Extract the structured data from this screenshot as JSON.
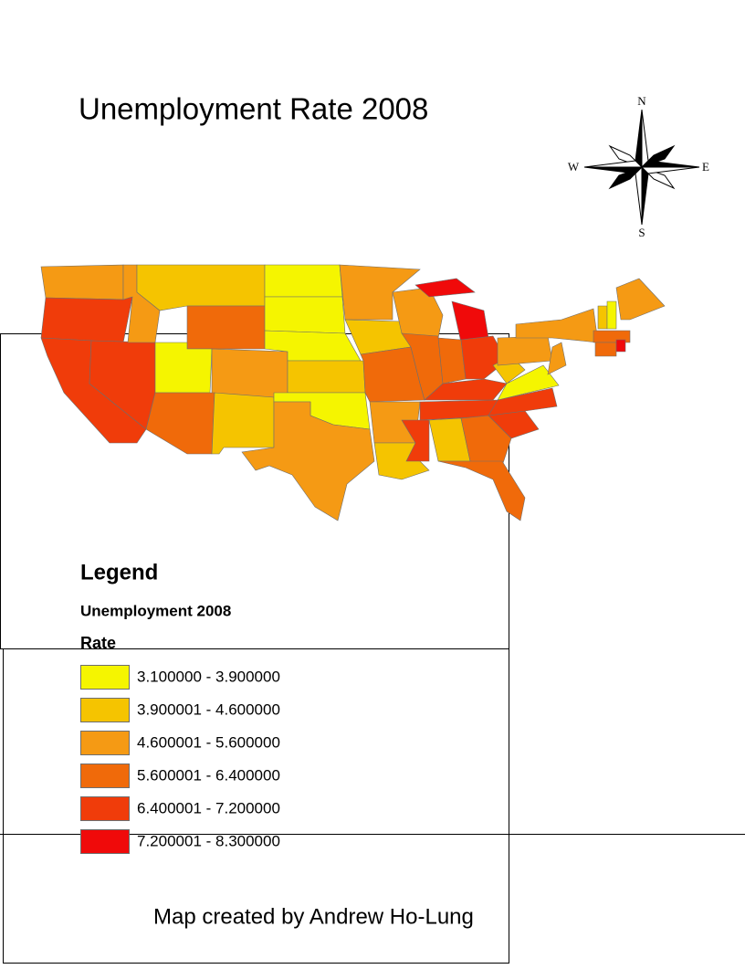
{
  "title": "Unemployment Rate 2008",
  "compass": {
    "north": "N",
    "south": "S",
    "east": "E",
    "west": "W"
  },
  "legend": {
    "title": "Legend",
    "layer": "Unemployment 2008",
    "field": "Rate",
    "classes": [
      {
        "label": "3.100000 - 3.900000",
        "color": "#f5f500"
      },
      {
        "label": "3.900001 - 4.600000",
        "color": "#f5c400"
      },
      {
        "label": "4.600001 - 5.600000",
        "color": "#f59a14"
      },
      {
        "label": "5.600001 - 6.400000",
        "color": "#f06a0a"
      },
      {
        "label": "6.400001 - 7.200000",
        "color": "#f03c0a"
      },
      {
        "label": "7.200001 - 8.300000",
        "color": "#f00a0a"
      }
    ]
  },
  "credit": "Map created by Andrew Ho-Lung"
}
